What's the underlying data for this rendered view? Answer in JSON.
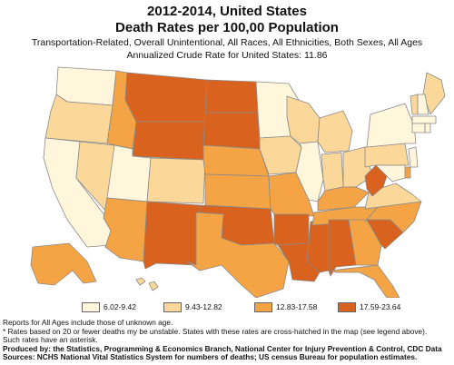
{
  "header": {
    "title_line1": "2012-2014, United States",
    "title_line2": "Death Rates per 100,00 Population",
    "subtitle_line1": "Transportation-Related, Overall Unintentional, All Races, All Ethnicities, Both Sexes, All Ages",
    "subtitle_line2": "Annualized Crude Rate for United States: 11.86"
  },
  "legend": {
    "classes": [
      {
        "label": "6.02-9.42",
        "color": "#fff6dc"
      },
      {
        "label": "9.43-12.82",
        "color": "#fbd89a"
      },
      {
        "label": "12.83-17.58",
        "color": "#f4a445"
      },
      {
        "label": "17.59-23.64",
        "color": "#d8621e"
      }
    ]
  },
  "map_data": {
    "WA": 0,
    "OR": 1,
    "CA": 0,
    "NV": 1,
    "ID": 2,
    "MT": 3,
    "WY": 3,
    "UT": 0,
    "AZ": 2,
    "CO": 1,
    "NM": 3,
    "ND": 3,
    "SD": 3,
    "NE": 2,
    "KS": 2,
    "OK": 3,
    "TX": 2,
    "MN": 0,
    "IA": 1,
    "MO": 2,
    "AR": 3,
    "LA": 3,
    "WI": 1,
    "IL": 0,
    "MS": 3,
    "MI": 1,
    "IN": 1,
    "OH": 1,
    "KY": 2,
    "TN": 2,
    "AL": 3,
    "GA": 2,
    "FL": 2,
    "SC": 3,
    "NC": 2,
    "VA": 1,
    "WV": 3,
    "PA": 1,
    "NY": 0,
    "ME": 1,
    "NH": 0,
    "VT": 1,
    "MA": 0,
    "CT": 0,
    "RI": 0,
    "NJ": 0,
    "DE": 2,
    "MD": 0,
    "AK": 2,
    "HI": 1
  },
  "notes": {
    "line1": "Reports for All Ages include those of unknown age.",
    "line2": "* Rates based on 20 or fewer deaths my be unstable. States with these rates are cross-hatched in the map (see legend above).",
    "line3": "Such rates have an asterisk.",
    "line4": "Produced by: the Statistics, Programming & Economics Branch, National Center for Injury Prevention & Control, CDC Data",
    "line5": "Sources: NCHS National Vital Statistics System for numbers of deaths; US census Bureau for population estimates."
  }
}
